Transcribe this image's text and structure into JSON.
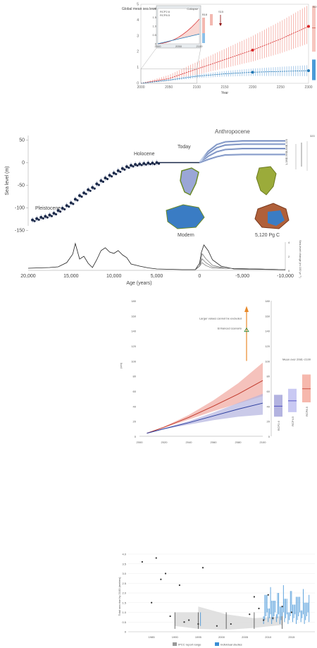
{
  "chart_data": [
    {
      "type": "line",
      "ylabel": "Global mean sea level (m)",
      "xlabel": "Year",
      "xlim": [
        2000,
        2300
      ],
      "ylim": [
        0,
        5
      ],
      "x_ticks": [
        "2000",
        "2050",
        "2100",
        "2150",
        "2200",
        "2250",
        "2300"
      ],
      "y_ticks": [
        "0",
        "1",
        "2",
        "3",
        "4",
        "5"
      ],
      "series": [
        {
          "name": "RCP2.6",
          "x": [
            2000,
            2050,
            2100,
            2150,
            2200,
            2250,
            2300
          ],
          "values": [
            0,
            0.2,
            0.45,
            0.6,
            0.7,
            0.75,
            0.8
          ]
        },
        {
          "name": "RCP8.5",
          "x": [
            2000,
            2050,
            2100,
            2150,
            2200,
            2250,
            2300
          ],
          "values": [
            0,
            0.3,
            0.9,
            1.5,
            2.1,
            2.8,
            3.6
          ]
        }
      ],
      "inset": {
        "xlim": [
          2000,
          2100
        ],
        "ylim": [
          0,
          2
        ],
        "x_ticks": [
          "2000",
          "2050",
          "2100"
        ],
        "y_ticks": [
          "0",
          "0.5",
          "1.0",
          "1.5",
          "2.0"
        ],
        "annotation": "Collapse"
      },
      "side_labels": {
        "top": "B19",
        "inset_a": "B18",
        "inset_b": "S15"
      },
      "colors": {
        "rcp26": "#1f77b4",
        "rcp85": "#d62728",
        "band26": "#9cc3e6",
        "band85": "#f4a8a0"
      }
    },
    {
      "type": "scatter",
      "ylabel": "Sea level (m)",
      "xlabel": "Age (years)",
      "xlim": [
        20000,
        -10000
      ],
      "ylim": [
        -140,
        60
      ],
      "x_ticks": [
        "20,000",
        "15,000",
        "10,000",
        "5,000",
        "0",
        "-5,000",
        "-10,000"
      ],
      "y_ticks": [
        "50",
        "0",
        "-50",
        "-100",
        "-150"
      ],
      "annotations": {
        "anthropocene": "Anthropocene",
        "holocene": "Holocene",
        "today": "Today",
        "pleistocene": "Pleistocene",
        "modern": "Modern",
        "future": "5,120 Pg C"
      },
      "emission_labels": [
        "5,120",
        "3,840",
        "2,560",
        "1,280"
      ],
      "emission_top_label": "320",
      "scatter_x": [
        19500,
        19000,
        18500,
        18000,
        17500,
        17000,
        16500,
        16000,
        15500,
        15000,
        14500,
        14000,
        13500,
        13000,
        12500,
        12000,
        11500,
        11000,
        10500,
        10000,
        9500,
        9000,
        8500,
        8000,
        7500,
        7000,
        6500,
        6000,
        5500,
        5000
      ],
      "scatter_y": [
        -127,
        -124,
        -121,
        -119,
        -116,
        -112,
        -106,
        -101,
        -95,
        -89,
        -81,
        -73,
        -67,
        -60,
        -55,
        -47,
        -40,
        -34,
        -28,
        -23,
        -18,
        -13,
        -9,
        -6,
        -4,
        -3,
        -2,
        -1,
        -1,
        0
      ],
      "future_lines": {
        "x": [
          0,
          -1000,
          -2000,
          -3000,
          -5000,
          -7500,
          -10000
        ],
        "series": [
          {
            "values": [
              0,
              25,
              40,
              46,
              48,
              48,
              48
            ]
          },
          {
            "values": [
              0,
              20,
              33,
              39,
              41,
              41,
              41
            ]
          },
          {
            "values": [
              0,
              14,
              24,
              29,
              31,
              31,
              31
            ]
          },
          {
            "values": [
              0,
              7,
              13,
              17,
              18,
              18,
              18
            ]
          }
        ]
      },
      "lower_panel": {
        "ylabel": "Sea-level change (m 100 yr⁻¹)",
        "ylim": [
          0,
          4
        ],
        "y_ticks": [
          "4",
          "2",
          "0"
        ]
      }
    },
    {
      "type": "line",
      "ylabel": "(cm)",
      "xlim": [
        2000,
        2100
      ],
      "ylim": [
        0,
        180
      ],
      "x_ticks": [
        "2000",
        "2020",
        "2040",
        "2060",
        "2080",
        "2100"
      ],
      "y_ticks": [
        "0",
        "20",
        "40",
        "60",
        "80",
        "100",
        "120",
        "140",
        "160",
        "180"
      ],
      "annotations": {
        "larger": "Larger values cannot be excluded",
        "enhanced": "Enhanced scenario",
        "mean_title": "Mean over 2081–2100"
      },
      "series": [
        {
          "name": "RCP8.5",
          "x": [
            2006,
            2020,
            2040,
            2060,
            2080,
            2100
          ],
          "values": [
            4,
            12,
            25,
            40,
            56,
            74
          ]
        },
        {
          "name": "RCP2.6",
          "x": [
            2006,
            2020,
            2040,
            2060,
            2080,
            2100
          ],
          "values": [
            4,
            10,
            18,
            27,
            36,
            44
          ]
        }
      ],
      "boxes": [
        {
          "name": "RCP2.6",
          "low": 26,
          "high": 55,
          "mean": 40
        },
        {
          "name": "RCP4.5",
          "low": 32,
          "high": 63,
          "mean": 47
        },
        {
          "name": "RCP8.5",
          "low": 45,
          "high": 82,
          "mean": 63
        }
      ],
      "colors": {
        "rcp85": "#c0392b",
        "rcp26": "#2c3e9e",
        "band85": "#f3b3ab",
        "band26": "#b3b3e0"
      }
    },
    {
      "type": "scatter",
      "ylabel": "Total sea rise by 2100 (metres)",
      "xlim": [
        1980,
        2020
      ],
      "ylim": [
        0,
        4
      ],
      "x_ticks": [
        "1985",
        "1990",
        "1995",
        "2000",
        "2005",
        "2010",
        "2015"
      ],
      "y_ticks": [
        "0",
        "0.5",
        "1.0",
        "1.5",
        "2.0",
        "2.5",
        "3.0",
        "3.5",
        "4.0"
      ],
      "legend": [
        "IPCC report range",
        "Individual studies"
      ],
      "points_x": [
        1983,
        1985,
        1986,
        1987,
        1988,
        1989,
        1991,
        1992,
        1993,
        1995,
        1996,
        1999,
        2002,
        2006,
        2007,
        2008,
        2009,
        2010,
        2011,
        2013,
        2015
      ],
      "points_y": [
        3.6,
        1.5,
        3.8,
        2.7,
        3.0,
        0.8,
        2.4,
        0.5,
        0.6,
        0.4,
        3.3,
        0.3,
        0.4,
        0.9,
        1.8,
        1.2,
        0.6,
        1.9,
        0.7,
        1.3,
        1.0
      ],
      "colors": {
        "range": "#d9d9d9",
        "studies": "#3a8fd6",
        "point": "#333333"
      }
    }
  ]
}
